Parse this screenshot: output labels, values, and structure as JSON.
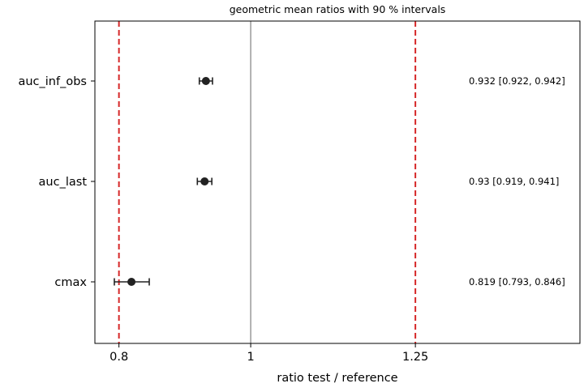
{
  "chart_data": {
    "type": "forest",
    "title": "geometric mean ratios with 90 % intervals",
    "xlabel": "ratio test / reference",
    "ylabel": "",
    "x_ticks": [
      {
        "value": 0.8,
        "label": "0.8"
      },
      {
        "value": 1.0,
        "label": "1"
      },
      {
        "value": 1.25,
        "label": "1.25"
      }
    ],
    "xlim": [
      0.7635,
      1.4998
    ],
    "reference_line": 1.0,
    "limit_lines": [
      0.8,
      1.25
    ],
    "grid": false,
    "categories": [
      "auc_inf_obs",
      "auc_last",
      "cmax"
    ],
    "points": [
      {
        "category": "auc_inf_obs",
        "estimate": 0.932,
        "lower": 0.922,
        "upper": 0.942,
        "label": "0.932 [0.922, 0.942]"
      },
      {
        "category": "auc_last",
        "estimate": 0.93,
        "lower": 0.919,
        "upper": 0.941,
        "label": "0.93 [0.919, 0.941]"
      },
      {
        "category": "cmax",
        "estimate": 0.819,
        "lower": 0.793,
        "upper": 0.846,
        "label": "0.819 [0.793, 0.846]"
      }
    ],
    "colors": {
      "marker": "#222222",
      "limit_line": "#d62728",
      "reference_line": "#808080",
      "axes": "#000000"
    }
  }
}
